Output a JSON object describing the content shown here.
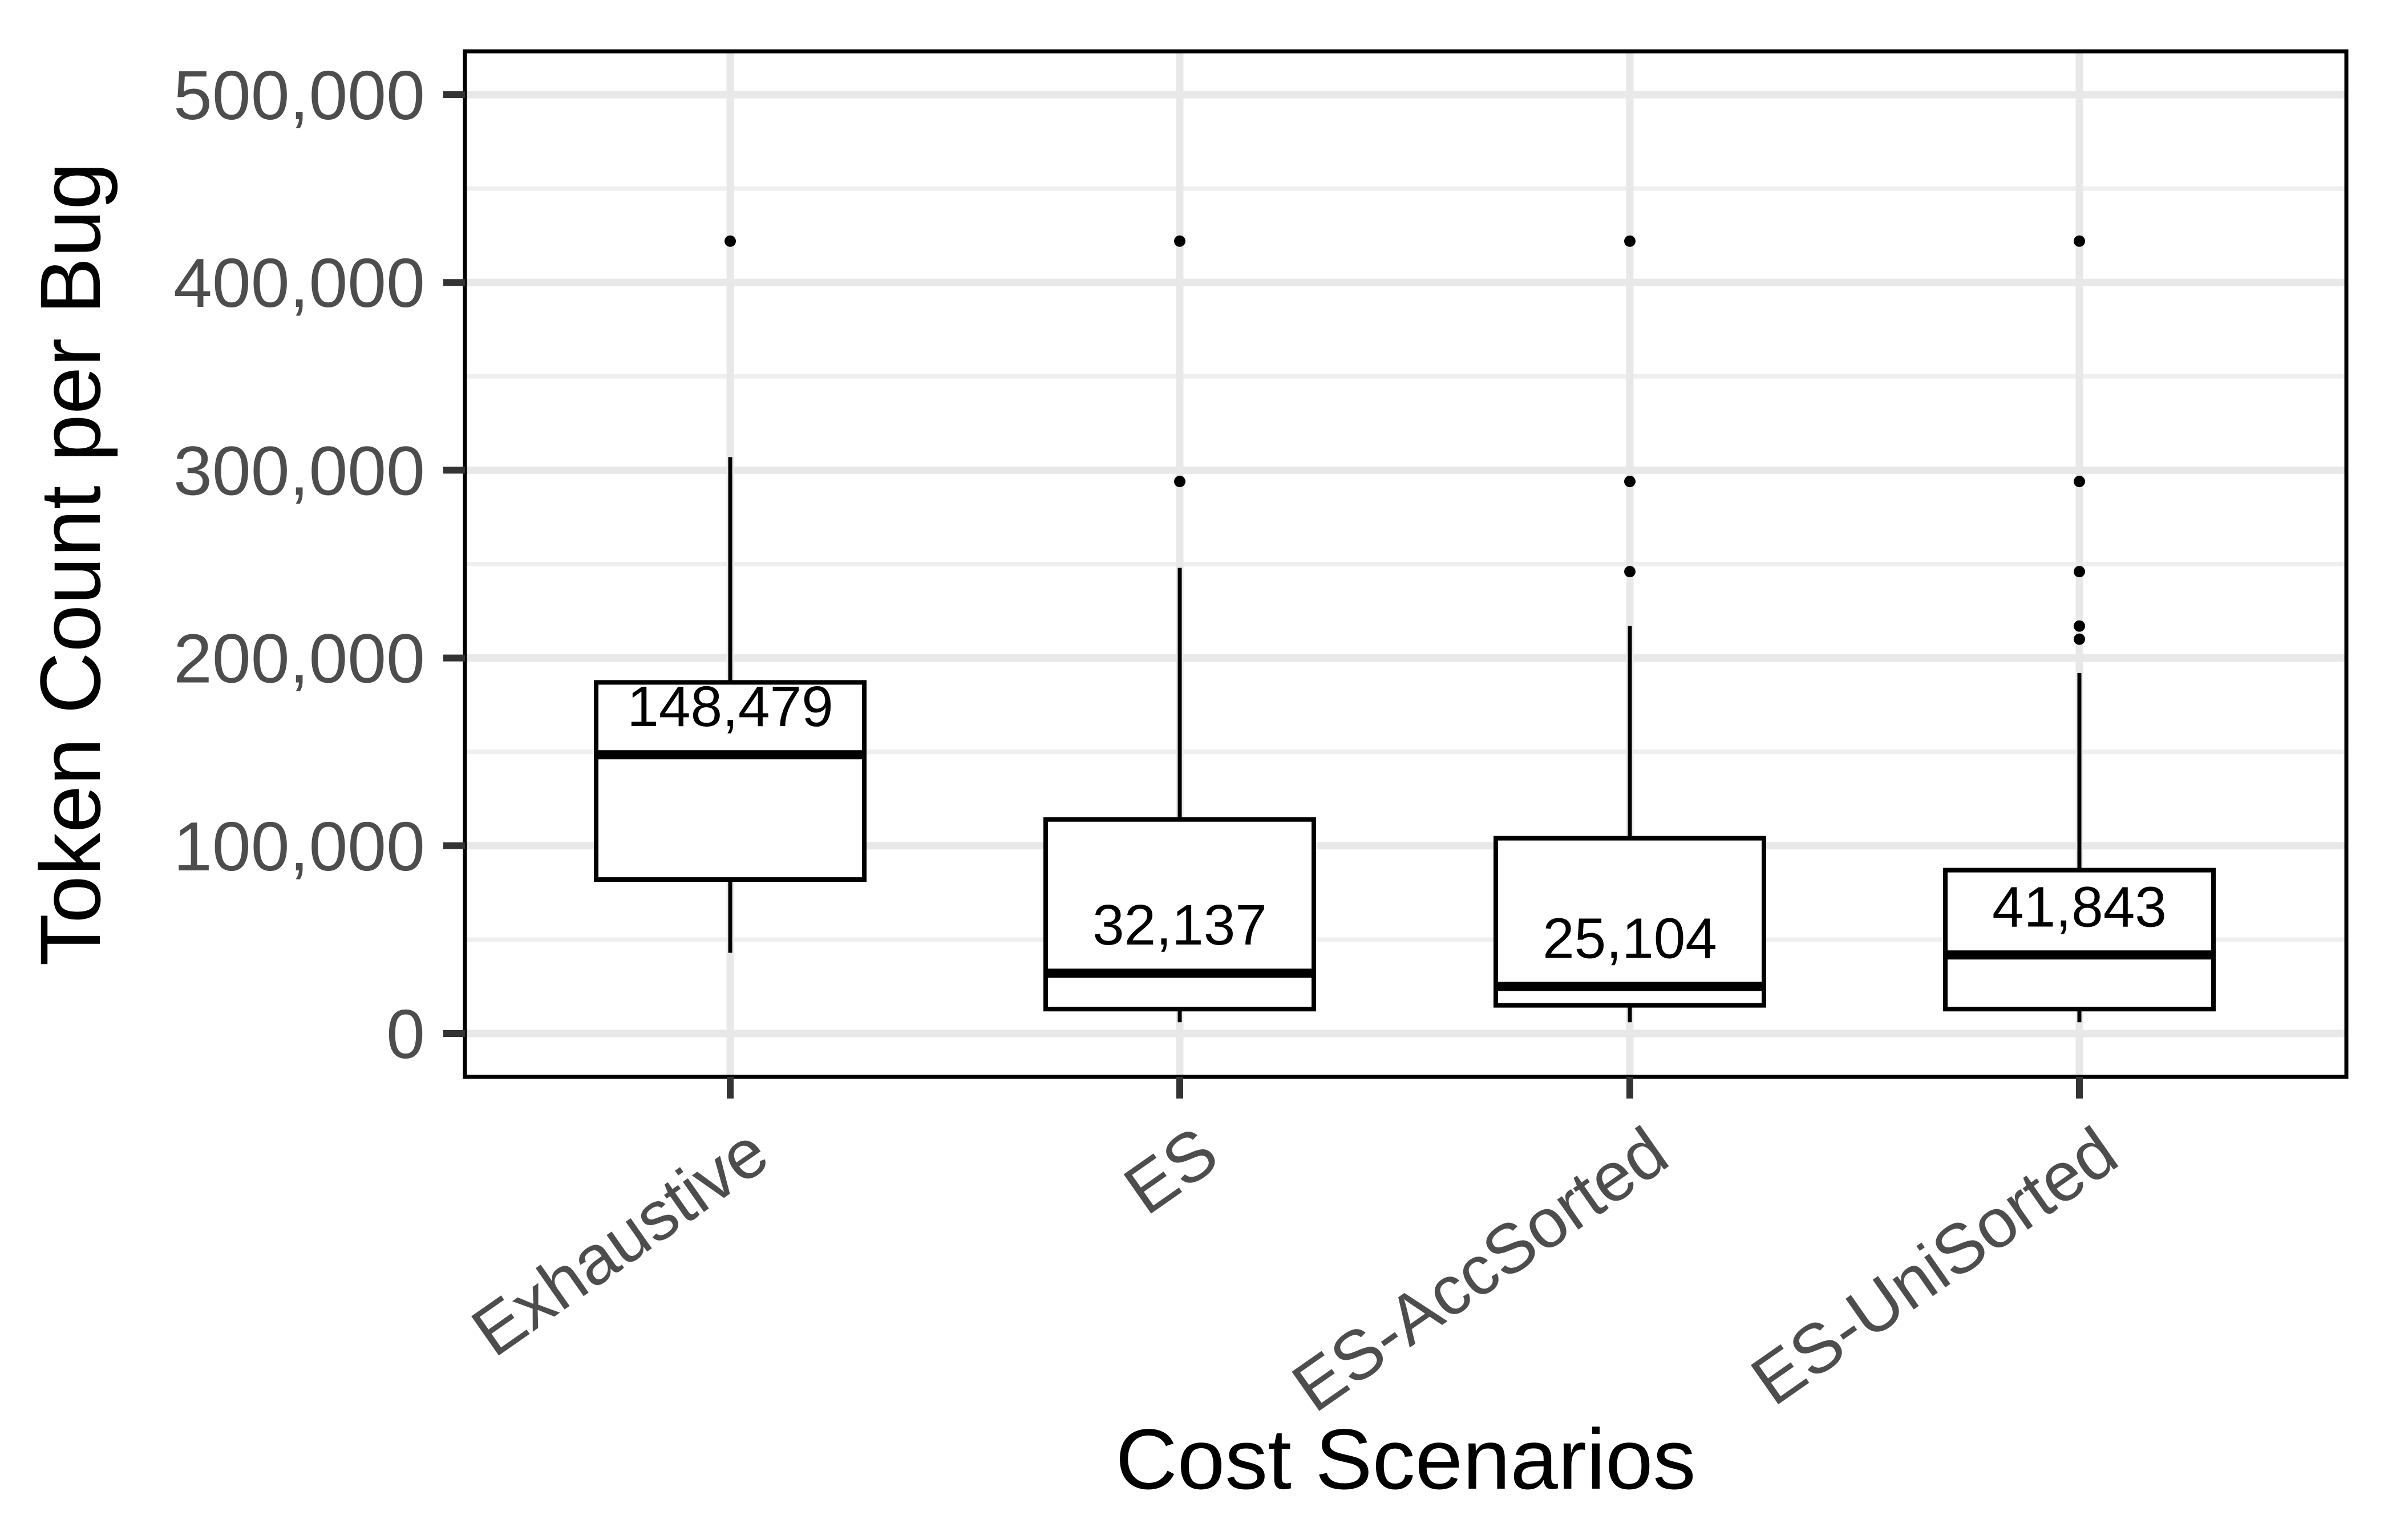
{
  "figure": {
    "background_color": "#ffffff",
    "panel_background": "#ffffff",
    "panel_border_color": "#000000",
    "grid_major_color": "#e8e8e8",
    "grid_minor_color": "#efefef",
    "tick_mark_color": "#333333",
    "axis_text_color": "#4d4d4d",
    "axis_title_color": "#000000",
    "box_stroke_color": "#000000",
    "box_fill_color": "#ffffff",
    "outlier_color": "#000000",
    "median_label_color": "#000000"
  },
  "chart_data": {
    "type": "boxplot",
    "title": "",
    "xlabel": "Cost Scenarios",
    "ylabel": "Token Count per Bug",
    "categories": [
      "Exhaustive",
      "ES",
      "ES-AccSorted",
      "ES-UniSorted"
    ],
    "x_tick_angle_deg": 35,
    "grid": {
      "major": true,
      "minor": true
    },
    "legend": "none",
    "y_axis": {
      "ylim": [
        -23000,
        523000
      ],
      "ticks": [
        0,
        100000,
        200000,
        300000,
        400000,
        500000
      ],
      "tick_labels": [
        "0",
        "100,000",
        "200,000",
        "300,000",
        "400,000",
        "500,000"
      ],
      "minor_ticks": [
        50000,
        150000,
        250000,
        350000,
        450000
      ]
    },
    "series": [
      {
        "name": "Exhaustive",
        "whisker_low": 43000,
        "q1": 82000,
        "median": 148479,
        "q3": 187000,
        "whisker_high": 307000,
        "outliers": [
          422000
        ],
        "median_label": "148,479"
      },
      {
        "name": "ES",
        "whisker_low": 6000,
        "q1": 13000,
        "median": 32137,
        "q3": 114000,
        "whisker_high": 248000,
        "outliers": [
          294000,
          422000
        ],
        "median_label": "32,137"
      },
      {
        "name": "ES-AccSorted",
        "whisker_low": 6000,
        "q1": 15000,
        "median": 25104,
        "q3": 104000,
        "whisker_high": 217000,
        "outliers": [
          246000,
          294000,
          422000
        ],
        "median_label": "25,104"
      },
      {
        "name": "ES-UniSorted",
        "whisker_low": 6000,
        "q1": 13000,
        "median": 41843,
        "q3": 87000,
        "whisker_high": 192000,
        "outliers": [
          210000,
          217000,
          246000,
          294000,
          422000
        ],
        "median_label": "41,843"
      }
    ]
  }
}
